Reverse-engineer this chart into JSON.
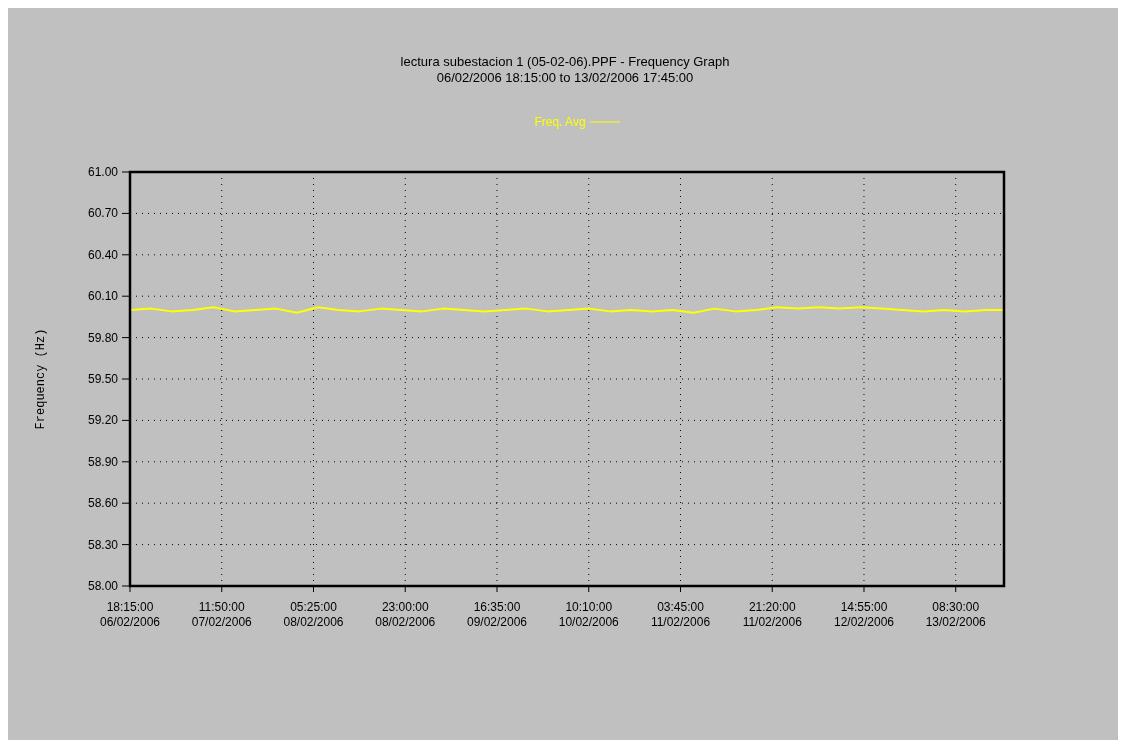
{
  "chart_data": {
    "type": "line",
    "title": "lectura subestacion 1 (05-02-06).PPF - Frequency Graph",
    "subtitle": "06/02/2006 18:15:00 to 13/02/2006 17:45:00",
    "ylabel": "Frequency (Hz)",
    "x": [
      "2006-02-06T18:15",
      "2006-02-06T22:15",
      "2006-02-07T02:15",
      "2006-02-07T06:15",
      "2006-02-07T10:15",
      "2006-02-07T14:15",
      "2006-02-07T18:15",
      "2006-02-07T22:15",
      "2006-02-08T02:15",
      "2006-02-08T06:15",
      "2006-02-08T10:15",
      "2006-02-08T14:15",
      "2006-02-08T18:15",
      "2006-02-08T22:15",
      "2006-02-09T02:15",
      "2006-02-09T06:15",
      "2006-02-09T10:15",
      "2006-02-09T14:15",
      "2006-02-09T18:15",
      "2006-02-09T22:15",
      "2006-02-10T02:15",
      "2006-02-10T06:15",
      "2006-02-10T10:15",
      "2006-02-10T14:15",
      "2006-02-10T18:15",
      "2006-02-10T22:15",
      "2006-02-11T02:15",
      "2006-02-11T06:15",
      "2006-02-11T10:15",
      "2006-02-11T14:15",
      "2006-02-11T18:15",
      "2006-02-11T22:15",
      "2006-02-12T02:15",
      "2006-02-12T06:15",
      "2006-02-12T10:15",
      "2006-02-12T14:15",
      "2006-02-12T18:15",
      "2006-02-12T22:15",
      "2006-02-13T02:15",
      "2006-02-13T06:15",
      "2006-02-13T10:15",
      "2006-02-13T14:15",
      "2006-02-13T17:45"
    ],
    "series": [
      {
        "name": "Freq. Avg",
        "color": "#ffff00",
        "values": [
          60.0,
          60.01,
          59.99,
          60.0,
          60.02,
          59.99,
          60.0,
          60.01,
          59.98,
          60.02,
          60.0,
          59.99,
          60.01,
          60.0,
          59.99,
          60.01,
          60.0,
          59.99,
          60.0,
          60.01,
          59.99,
          60.0,
          60.01,
          59.99,
          60.0,
          59.99,
          60.0,
          59.98,
          60.01,
          59.99,
          60.0,
          60.02,
          60.01,
          60.02,
          60.01,
          60.02,
          60.01,
          60.0,
          59.99,
          60.0,
          59.99,
          60.0,
          60.0
        ]
      }
    ],
    "ylim": [
      58,
      61
    ],
    "yticks": [
      {
        "value": 58,
        "label": "58.00"
      },
      {
        "value": 58.3,
        "label": "58.30"
      },
      {
        "value": 58.6,
        "label": "58.60"
      },
      {
        "value": 58.9,
        "label": "58.90"
      },
      {
        "value": 59.2,
        "label": "59.20"
      },
      {
        "value": 59.5,
        "label": "59.50"
      },
      {
        "value": 59.8,
        "label": "59.80"
      },
      {
        "value": 60.1,
        "label": "60.10"
      },
      {
        "value": 60.4,
        "label": "60.40"
      },
      {
        "value": 60.7,
        "label": "60.70"
      },
      {
        "value": 61,
        "label": "61.00"
      }
    ],
    "xlim": [
      "2006-02-06T18:15",
      "2006-02-13T17:45"
    ],
    "xticks": [
      {
        "value": "2006-02-06T18:15",
        "label": "18:15:00\n06/02/2006"
      },
      {
        "value": "2006-02-07T11:50",
        "label": "11:50:00\n07/02/2006"
      },
      {
        "value": "2006-02-08T05:25",
        "label": "05:25:00\n08/02/2006"
      },
      {
        "value": "2006-02-08T23:00",
        "label": "23:00:00\n08/02/2006"
      },
      {
        "value": "2006-02-09T16:35",
        "label": "16:35:00\n09/02/2006"
      },
      {
        "value": "2006-02-10T10:10",
        "label": "10:10:00\n10/02/2006"
      },
      {
        "value": "2006-02-11T03:45",
        "label": "03:45:00\n11/02/2006"
      },
      {
        "value": "2006-02-11T21:20",
        "label": "21:20:00\n11/02/2006"
      },
      {
        "value": "2006-02-12T14:55",
        "label": "14:55:00\n12/02/2006"
      },
      {
        "value": "2006-02-13T08:30",
        "label": "08:30:00\n13/02/2006"
      }
    ],
    "grid": true,
    "legend": "top",
    "marker": "none",
    "line_style": "solid"
  }
}
